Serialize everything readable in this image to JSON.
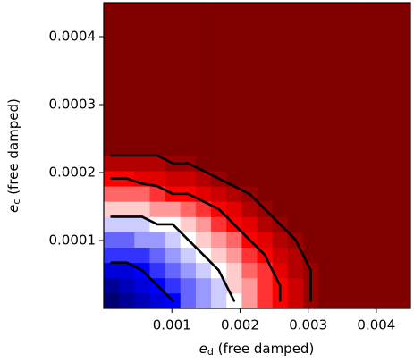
{
  "chart_data": {
    "type": "heatmap",
    "xlabel": {
      "symbol": "e",
      "subscript": "d",
      "text": " (free damped)"
    },
    "ylabel": {
      "symbol": "e",
      "subscript": "c",
      "text": " (free damped)"
    },
    "xlim": [
      0,
      0.0045
    ],
    "ylim": [
      0,
      0.00045
    ],
    "xticks": [
      0.001,
      0.002,
      0.003,
      0.004
    ],
    "yticks": [
      0.0001,
      0.0002,
      0.0003,
      0.0004
    ],
    "colormap": "seismic",
    "clim": [
      -1,
      1
    ],
    "contour_levels": [
      -0.5,
      0,
      0.5,
      0.9
    ],
    "contour_color": "#000000",
    "z": [
      [
        -0.9,
        -0.8,
        -0.7,
        -0.6,
        -0.5,
        -0.3,
        -0.2,
        -0.1,
        0.0,
        0.2,
        0.4,
        0.5,
        0.7,
        0.9,
        1,
        1,
        1,
        1,
        1,
        1
      ],
      [
        -0.8,
        -0.7,
        -0.6,
        -0.5,
        -0.4,
        -0.3,
        -0.2,
        -0.1,
        0.1,
        0.2,
        0.4,
        0.5,
        0.7,
        0.9,
        1,
        1,
        1,
        1,
        1,
        1
      ],
      [
        -0.6,
        -0.6,
        -0.5,
        -0.4,
        -0.3,
        -0.2,
        -0.1,
        0.0,
        0.1,
        0.3,
        0.4,
        0.6,
        0.8,
        0.9,
        1,
        1,
        1,
        1,
        1,
        1
      ],
      [
        -0.4,
        -0.4,
        -0.4,
        -0.3,
        -0.2,
        -0.1,
        0.0,
        0.1,
        0.2,
        0.4,
        0.5,
        0.7,
        0.8,
        1,
        1,
        1,
        1,
        1,
        1,
        1
      ],
      [
        -0.3,
        -0.3,
        -0.2,
        -0.2,
        -0.1,
        0.0,
        0.1,
        0.2,
        0.3,
        0.5,
        0.6,
        0.8,
        0.9,
        1,
        1,
        1,
        1,
        1,
        1,
        1
      ],
      [
        -0.1,
        -0.1,
        -0.1,
        0.0,
        0.0,
        0.1,
        0.2,
        0.4,
        0.5,
        0.6,
        0.8,
        0.9,
        1,
        1,
        1,
        1,
        1,
        1,
        1,
        1
      ],
      [
        0.1,
        0.1,
        0.1,
        0.2,
        0.2,
        0.3,
        0.4,
        0.5,
        0.6,
        0.8,
        0.9,
        1,
        1,
        1,
        1,
        1,
        1,
        1,
        1,
        1
      ],
      [
        0.3,
        0.3,
        0.3,
        0.4,
        0.5,
        0.5,
        0.6,
        0.7,
        0.8,
        0.9,
        1,
        1,
        1,
        1,
        1,
        1,
        1,
        1,
        1,
        1
      ],
      [
        0.5,
        0.5,
        0.6,
        0.6,
        0.7,
        0.7,
        0.8,
        0.9,
        1,
        1,
        1,
        1,
        1,
        1,
        1,
        1,
        1,
        1,
        1,
        1
      ],
      [
        0.8,
        0.8,
        0.8,
        0.8,
        0.9,
        0.9,
        1,
        1,
        1,
        1,
        1,
        1,
        1,
        1,
        1,
        1,
        1,
        1,
        1,
        1
      ],
      [
        1,
        1,
        1,
        1,
        1,
        1,
        1,
        1,
        1,
        1,
        1,
        1,
        1,
        1,
        1,
        1,
        1,
        1,
        1,
        1
      ],
      [
        1,
        1,
        1,
        1,
        1,
        1,
        1,
        1,
        1,
        1,
        1,
        1,
        1,
        1,
        1,
        1,
        1,
        1,
        1,
        1
      ],
      [
        1,
        1,
        1,
        1,
        1,
        1,
        1,
        1,
        1,
        1,
        1,
        1,
        1,
        1,
        1,
        1,
        1,
        1,
        1,
        1
      ],
      [
        1,
        1,
        1,
        1,
        1,
        1,
        1,
        1,
        1,
        1,
        1,
        1,
        1,
        1,
        1,
        1,
        1,
        1,
        1,
        1
      ],
      [
        1,
        1,
        1,
        1,
        1,
        1,
        1,
        1,
        1,
        1,
        1,
        1,
        1,
        1,
        1,
        1,
        1,
        1,
        1,
        1
      ],
      [
        1,
        1,
        1,
        1,
        1,
        1,
        1,
        1,
        1,
        1,
        1,
        1,
        1,
        1,
        1,
        1,
        1,
        1,
        1,
        1
      ],
      [
        1,
        1,
        1,
        1,
        1,
        1,
        1,
        1,
        1,
        1,
        1,
        1,
        1,
        1,
        1,
        1,
        1,
        1,
        1,
        1
      ],
      [
        1,
        1,
        1,
        1,
        1,
        1,
        1,
        1,
        1,
        1,
        1,
        1,
        1,
        1,
        1,
        1,
        1,
        1,
        1,
        1
      ],
      [
        1,
        1,
        1,
        1,
        1,
        1,
        1,
        1,
        1,
        1,
        1,
        1,
        1,
        1,
        1,
        1,
        1,
        1,
        1,
        1
      ],
      [
        1,
        1,
        1,
        1,
        1,
        1,
        1,
        1,
        1,
        1,
        1,
        1,
        1,
        1,
        1,
        1,
        1,
        1,
        1,
        1
      ]
    ]
  }
}
